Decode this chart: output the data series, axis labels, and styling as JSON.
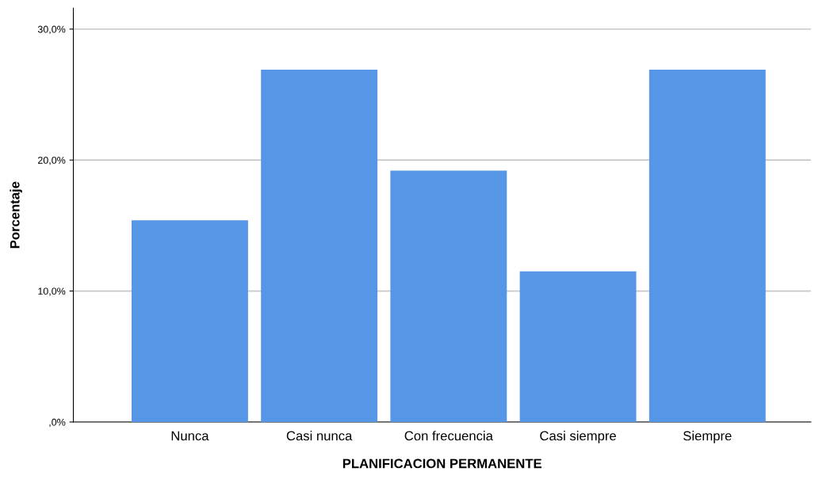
{
  "chart_data": {
    "type": "bar",
    "xlabel": "PLANIFICACION PERMANENTE",
    "ylabel": "Porcentaje",
    "categories": [
      "Nunca",
      "Casi nunca",
      "Con frecuencia",
      "Casi siempre",
      "Siempre"
    ],
    "values": [
      15.4,
      26.9,
      19.2,
      11.5,
      26.9
    ],
    "color": "#5596e6",
    "ylim": [
      0,
      31.6
    ],
    "yticks": [
      {
        "value": 0,
        "label": ",0%"
      },
      {
        "value": 10,
        "label": "10,0%"
      },
      {
        "value": 20,
        "label": "20,0%"
      },
      {
        "value": 30,
        "label": "30,0%"
      }
    ],
    "grid": "y"
  }
}
